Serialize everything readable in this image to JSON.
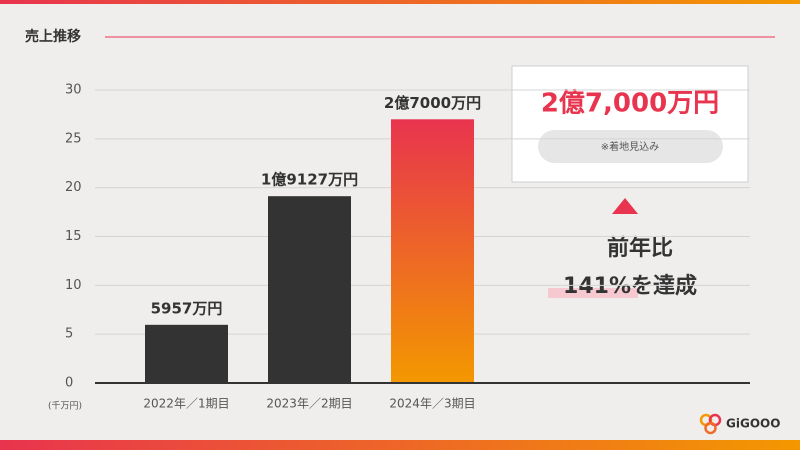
{
  "chart_data": {
    "type": "bar",
    "title": "売上推移",
    "categories": [
      "2022年／1期目",
      "2023年／2期目",
      "2024年／3期目"
    ],
    "values": [
      5.957,
      19.127,
      27
    ],
    "value_labels": [
      "5957万円",
      "1億9127万円",
      "2億7000万円"
    ],
    "bar_colors": [
      [
        "#333333"
      ],
      [
        "#333333"
      ],
      [
        "#e8344e",
        "#f39800"
      ]
    ],
    "y_unit_label": "(千万円)",
    "ylim": [
      0,
      30
    ],
    "yticks": [
      0,
      5,
      10,
      15,
      20,
      25,
      30
    ],
    "grid": true,
    "annotations": {
      "forecast": "2億7,000万円",
      "note": "※着地見込み",
      "growth_label": "前年比",
      "growth": "141%を達成"
    }
  },
  "brand": "GiGOOO"
}
